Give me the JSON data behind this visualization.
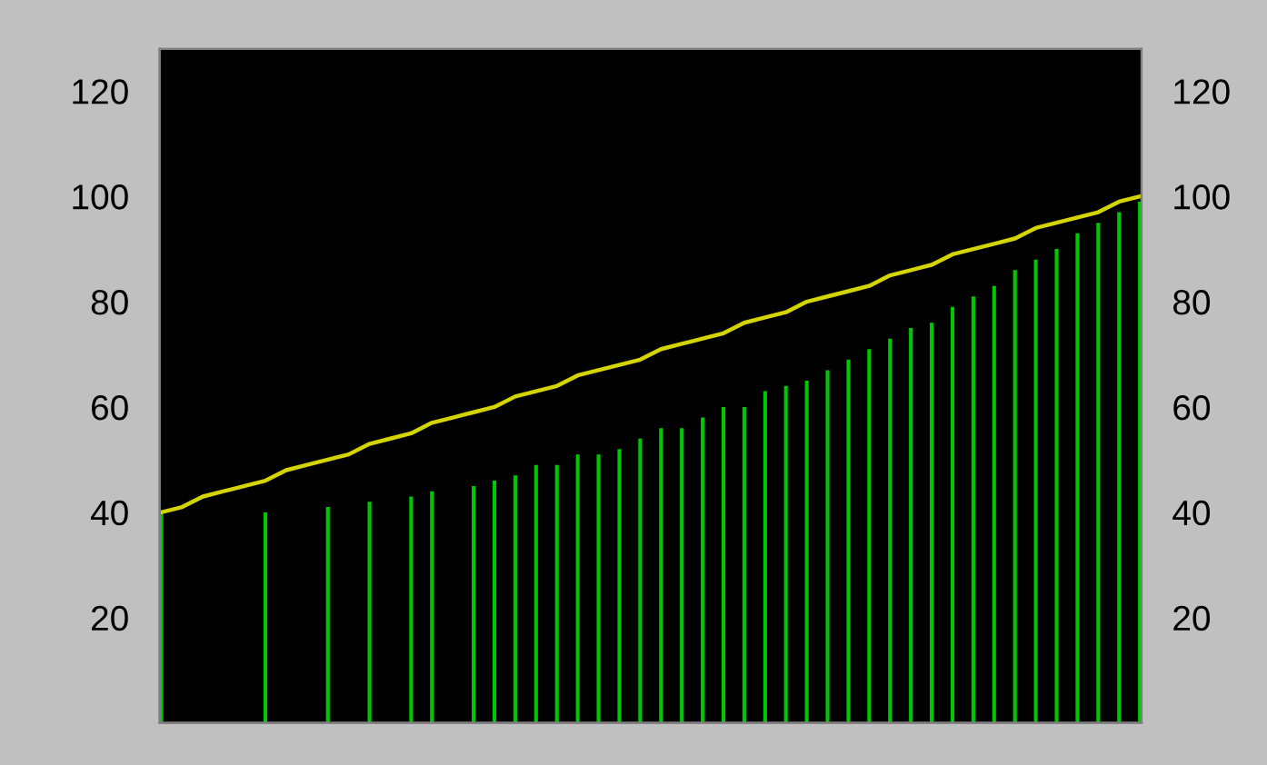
{
  "chart_data": {
    "type": "bar",
    "categories": [
      null,
      null,
      null,
      null,
      null,
      null,
      null,
      null,
      null,
      null,
      null,
      null,
      null,
      null,
      null,
      null,
      null,
      null,
      null,
      null,
      null,
      null,
      null,
      null,
      null,
      null,
      null,
      null,
      null,
      null,
      null,
      null,
      null,
      null,
      null,
      null,
      null,
      null,
      null,
      null,
      null,
      null,
      null,
      null,
      null,
      null,
      null,
      null
    ],
    "series": [
      {
        "color": "#00c800",
        "values": [
          40,
          null,
          null,
          null,
          null,
          40,
          null,
          null,
          41,
          null,
          42,
          null,
          43,
          44,
          null,
          45,
          46,
          47,
          49,
          49,
          51,
          51,
          52,
          54,
          56,
          56,
          58,
          60,
          60,
          63,
          64,
          65,
          67,
          69,
          71,
          73,
          75,
          76,
          79,
          81,
          83,
          86,
          88,
          90,
          93,
          95,
          97,
          99
        ]
      },
      {
        "type": "line",
        "color": "#d4d400",
        "values": [
          40,
          41,
          43,
          44,
          45,
          46,
          48,
          49,
          50,
          51,
          53,
          54,
          55,
          57,
          58,
          59,
          60,
          62,
          63,
          64,
          66,
          67,
          68,
          69,
          71,
          72,
          73,
          74,
          76,
          77,
          78,
          80,
          81,
          82,
          83,
          85,
          86,
          87,
          89,
          90,
          91,
          92,
          94,
          95,
          96,
          97,
          99,
          100
        ]
      }
    ],
    "ylim": [
      0,
      128
    ],
    "yticks": [
      20,
      40,
      60,
      80,
      100,
      120
    ],
    "y2lim": [
      0,
      128
    ],
    "y2ticks": [
      20,
      40,
      60,
      80,
      100,
      120
    ],
    "grid": false,
    "legend": false,
    "marker": "none",
    "line_style": "solid"
  }
}
